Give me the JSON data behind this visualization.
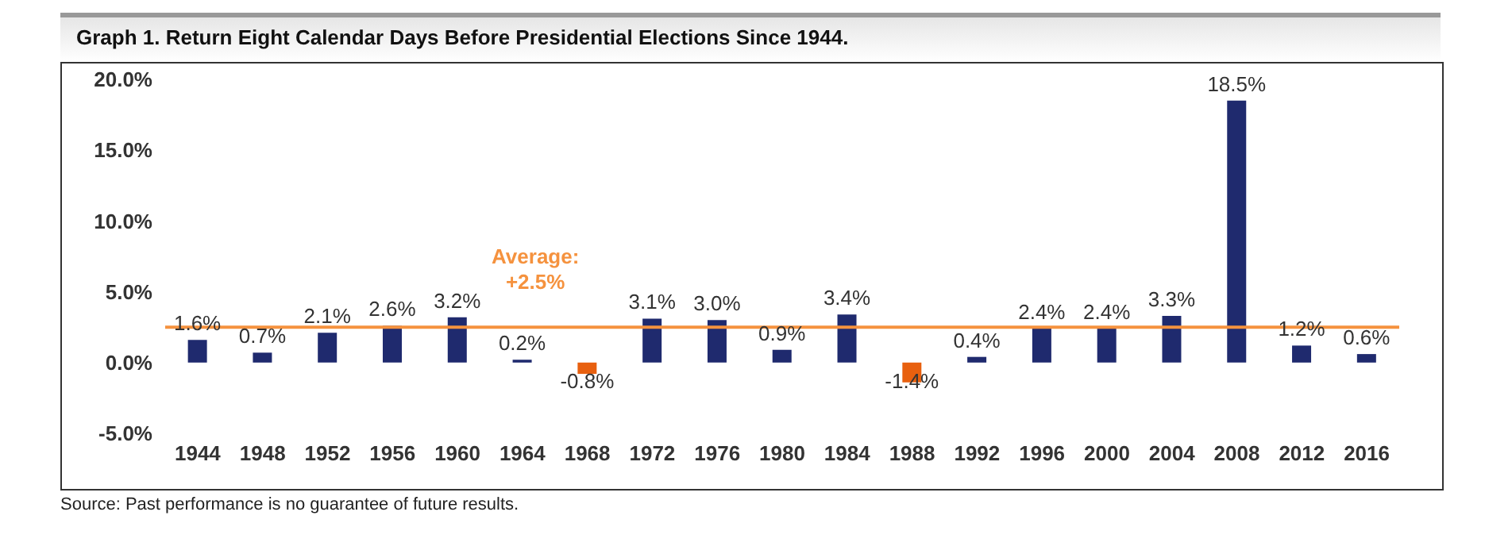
{
  "chart_data": {
    "type": "bar",
    "title": "Graph 1. Return Eight Calendar Days Before Presidential Elections Since 1944.",
    "categories": [
      "1944",
      "1948",
      "1952",
      "1956",
      "1960",
      "1964",
      "1968",
      "1972",
      "1976",
      "1980",
      "1984",
      "1988",
      "1992",
      "1996",
      "2000",
      "2004",
      "2008",
      "2012",
      "2016"
    ],
    "values": [
      1.6,
      0.7,
      2.1,
      2.6,
      3.2,
      0.2,
      -0.8,
      3.1,
      3.0,
      0.9,
      3.4,
      -1.4,
      0.4,
      2.4,
      2.4,
      3.3,
      18.5,
      1.2,
      0.6
    ],
    "colors": [
      "#1f2a6e",
      "#1f2a6e",
      "#1f2a6e",
      "#1f2a6e",
      "#1f2a6e",
      "#1f2a6e",
      "#e8600f",
      "#1f2a6e",
      "#1f2a6e",
      "#1f2a6e",
      "#1f2a6e",
      "#e8600f",
      "#1f2a6e",
      "#1f2a6e",
      "#1f2a6e",
      "#1f2a6e",
      "#1f2a6e",
      "#1f2a6e",
      "#1f2a6e"
    ],
    "value_labels": [
      "1.6%",
      "0.7%",
      "2.1%",
      "2.6%",
      "3.2%",
      "0.2%",
      "-0.8%",
      "3.1%",
      "3.0%",
      "0.9%",
      "3.4%",
      "-1.4%",
      "0.4%",
      "2.4%",
      "2.4%",
      "3.3%",
      "18.5%",
      "1.2%",
      "0.6%"
    ],
    "ylim": [
      -5,
      20
    ],
    "yticks": [
      {
        "value": -5,
        "label": "-5.0%"
      },
      {
        "value": 0,
        "label": "0.0%"
      },
      {
        "value": 5,
        "label": "5.0%"
      },
      {
        "value": 10,
        "label": "10.0%"
      },
      {
        "value": 15,
        "label": "15.0%"
      },
      {
        "value": 20,
        "label": "20.0%"
      }
    ],
    "ref_lines": [
      {
        "axis": "y",
        "value": 2.5,
        "label": "Average: +2.5%",
        "color": "#f5923e"
      }
    ],
    "annotations": [
      "Source: Past performance is no guarantee of future results."
    ],
    "grid": false,
    "legend": false
  }
}
